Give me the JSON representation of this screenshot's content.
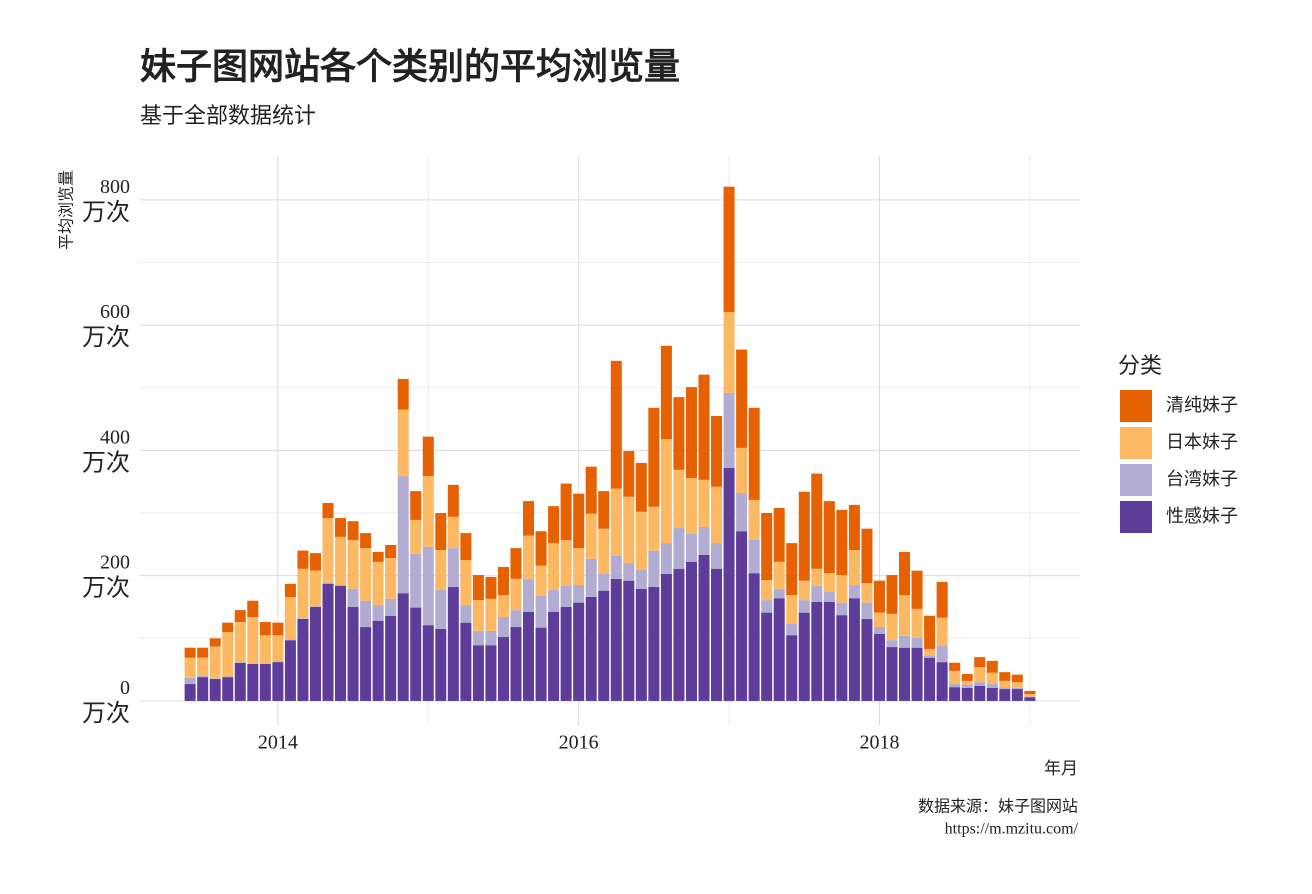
{
  "chart_data": {
    "type": "stacked_bar",
    "title": "妹子图网站各个类别的平均浏览量",
    "subtitle": "基于全部数据统计",
    "y_label": "平均浏览量",
    "x_label": "年月",
    "caption": [
      "数据来源：妹子图网站",
      "https://m.mzitu.com/"
    ],
    "legend_title": "分类",
    "legend_position": "right",
    "grid": true,
    "x": [
      "2013-06",
      "2013-07",
      "2013-08",
      "2013-09",
      "2013-10",
      "2013-11",
      "2013-12",
      "2014-01",
      "2014-02",
      "2014-03",
      "2014-04",
      "2014-05",
      "2014-06",
      "2014-07",
      "2014-08",
      "2014-09",
      "2014-10",
      "2014-11",
      "2014-12",
      "2015-01",
      "2015-02",
      "2015-03",
      "2015-04",
      "2015-05",
      "2015-06",
      "2015-07",
      "2015-08",
      "2015-09",
      "2015-10",
      "2015-11",
      "2015-12",
      "2016-01",
      "2016-02",
      "2016-03",
      "2016-04",
      "2016-05",
      "2016-06",
      "2016-07",
      "2016-08",
      "2016-09",
      "2016-10",
      "2016-11",
      "2016-12",
      "2017-01",
      "2017-02",
      "2017-03",
      "2017-04",
      "2017-05",
      "2017-06",
      "2017-07",
      "2017-08",
      "2017-09",
      "2017-10",
      "2017-11",
      "2017-12",
      "2018-01",
      "2018-02",
      "2018-03",
      "2018-04",
      "2018-05",
      "2018-06",
      "2018-07",
      "2018-08",
      "2018-09",
      "2018-10",
      "2018-11",
      "2018-12",
      "2019-01"
    ],
    "xlim": [
      "2013-02",
      "2019-05"
    ],
    "xticks": [
      "2014",
      "2016",
      "2018"
    ],
    "minor_xticks": [
      "2015",
      "2017",
      "2019"
    ],
    "ylim": [
      -40,
      870
    ],
    "yticks": [
      {
        "value": 0,
        "label": "0\n万次"
      },
      {
        "value": 200,
        "label": "200\n万次"
      },
      {
        "value": 400,
        "label": "400\n万次"
      },
      {
        "value": 600,
        "label": "600\n万次"
      },
      {
        "value": 800,
        "label": "800\n万次"
      }
    ],
    "minor_yticks": [
      100,
      300,
      500,
      700
    ],
    "series": [
      {
        "name": "性感妹子",
        "color": "#5e3c99",
        "values": [
          27,
          38,
          35,
          38,
          61,
          59,
          59,
          62,
          97,
          131,
          150,
          187,
          184,
          150,
          118,
          128,
          136,
          172,
          149,
          121,
          115,
          182,
          125,
          89,
          89,
          102,
          118,
          142,
          117,
          142,
          150,
          157,
          166,
          176,
          195,
          192,
          179,
          182,
          203,
          211,
          222,
          233,
          211,
          372,
          271,
          204,
          141,
          164,
          105,
          141,
          158,
          158,
          137,
          164,
          131,
          107,
          86,
          85,
          85,
          69,
          62,
          22,
          21,
          24,
          21,
          19,
          19,
          6
        ]
      },
      {
        "name": "台湾妹子",
        "color": "#b2abd2",
        "values": [
          10,
          2,
          1,
          1,
          1,
          1,
          1,
          1,
          1,
          1,
          1,
          2,
          1,
          29,
          42,
          25,
          27,
          187,
          86,
          125,
          62,
          62,
          28,
          23,
          23,
          32,
          27,
          53,
          51,
          35,
          34,
          28,
          61,
          28,
          37,
          28,
          30,
          58,
          49,
          65,
          45,
          45,
          41,
          120,
          61,
          53,
          20,
          15,
          18,
          20,
          26,
          16,
          20,
          21,
          26,
          11,
          11,
          19,
          16,
          4,
          27,
          5,
          5,
          6,
          6,
          3,
          2,
          1
        ]
      },
      {
        "name": "日本妹子",
        "color": "#fdb863",
        "values": [
          32,
          29,
          51,
          71,
          64,
          74,
          45,
          42,
          68,
          79,
          57,
          103,
          77,
          78,
          84,
          69,
          65,
          106,
          54,
          113,
          64,
          50,
          72,
          49,
          51,
          35,
          50,
          69,
          48,
          75,
          73,
          59,
          72,
          71,
          107,
          106,
          93,
          70,
          166,
          93,
          89,
          75,
          90,
          129,
          72,
          64,
          32,
          43,
          46,
          31,
          27,
          30,
          44,
          56,
          31,
          23,
          42,
          65,
          46,
          10,
          44,
          21,
          6,
          24,
          18,
          10,
          9,
          4
        ]
      },
      {
        "name": "清纯妹子",
        "color": "#e66101",
        "values": [
          16,
          16,
          13,
          15,
          19,
          26,
          21,
          20,
          21,
          29,
          28,
          24,
          30,
          30,
          24,
          16,
          21,
          49,
          46,
          63,
          59,
          51,
          43,
          40,
          35,
          45,
          49,
          55,
          55,
          59,
          90,
          87,
          75,
          60,
          204,
          73,
          78,
          158,
          149,
          116,
          145,
          168,
          113,
          200,
          157,
          147,
          107,
          86,
          83,
          142,
          152,
          115,
          104,
          72,
          87,
          51,
          62,
          69,
          61,
          53,
          57,
          13,
          11,
          16,
          19,
          14,
          12,
          5
        ]
      }
    ]
  }
}
